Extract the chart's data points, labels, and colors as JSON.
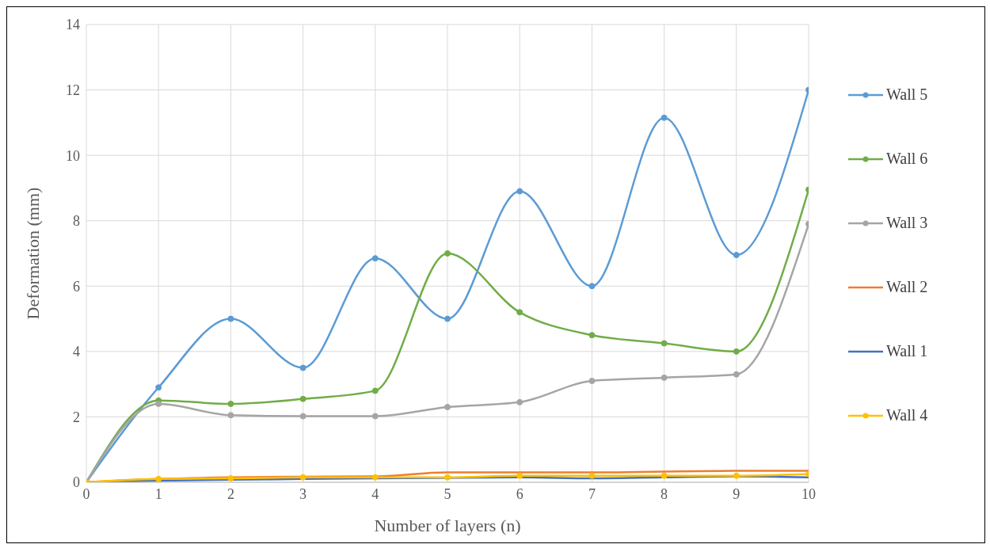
{
  "chart_data": {
    "type": "line",
    "xlabel": "Number of layers (n)",
    "ylabel": "Deformation (mm)",
    "x": [
      0,
      1,
      2,
      3,
      4,
      5,
      6,
      7,
      8,
      9,
      10
    ],
    "xlim": [
      0,
      10
    ],
    "xticks": [
      0,
      1,
      2,
      3,
      4,
      5,
      6,
      7,
      8,
      9,
      10
    ],
    "ylim": [
      0,
      14
    ],
    "yticks": [
      0,
      2,
      4,
      6,
      8,
      10,
      12,
      14
    ],
    "grid": true,
    "legend": "right",
    "line_style": "solid",
    "series": [
      {
        "name": "Wall 5",
        "color": "#5b9bd5",
        "marker": "circle",
        "values": [
          0,
          2.9,
          5.0,
          3.5,
          6.85,
          5.0,
          8.9,
          6.0,
          11.15,
          6.95,
          12.0
        ]
      },
      {
        "name": "Wall 6",
        "color": "#70ad47",
        "marker": "circle",
        "values": [
          0,
          2.5,
          2.4,
          2.55,
          2.8,
          7.0,
          5.2,
          4.5,
          4.25,
          4.0,
          8.95
        ]
      },
      {
        "name": "Wall 3",
        "color": "#a5a5a5",
        "marker": "circle",
        "values": [
          0,
          2.4,
          2.05,
          2.02,
          2.02,
          2.3,
          2.45,
          3.1,
          3.2,
          3.3,
          7.9
        ]
      },
      {
        "name": "Wall 2",
        "color": "#ed7d31",
        "marker": "none",
        "values": [
          0,
          0.1,
          0.15,
          0.17,
          0.18,
          0.3,
          0.3,
          0.3,
          0.33,
          0.35,
          0.35
        ]
      },
      {
        "name": "Wall 1",
        "color": "#4472c4",
        "marker": "none",
        "values": [
          0,
          0.05,
          0.08,
          0.1,
          0.12,
          null,
          0.15,
          0.12,
          0.15,
          0.18,
          0.15
        ]
      },
      {
        "name": "Wall 4",
        "color": "#ffc000",
        "marker": "circle",
        "values": [
          0,
          0.1,
          0.12,
          0.15,
          0.15,
          0.15,
          0.2,
          0.2,
          0.2,
          0.2,
          0.25
        ]
      }
    ]
  }
}
